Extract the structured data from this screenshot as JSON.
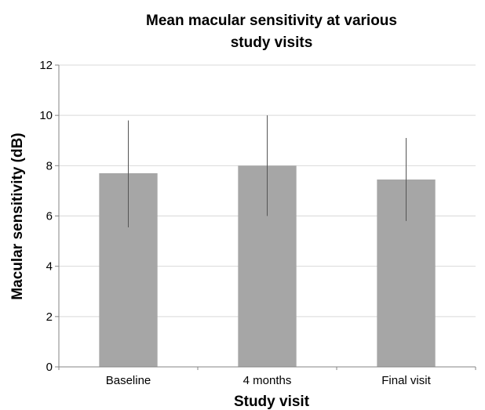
{
  "chart_data": {
    "type": "bar",
    "title": "Mean macular sensitivity at various study visits",
    "title_lines": [
      "Mean macular sensitivity at various",
      "study visits"
    ],
    "xlabel": "Study visit",
    "ylabel": "Macular sensitivity (dB)",
    "categories": [
      "Baseline",
      "4 months",
      "Final visit"
    ],
    "values": [
      7.7,
      8.0,
      7.45
    ],
    "error_low": [
      5.55,
      6.0,
      5.8
    ],
    "error_high": [
      9.8,
      10.0,
      9.1
    ],
    "ylim": [
      0,
      12
    ],
    "yticks": [
      0,
      2,
      4,
      6,
      8,
      10,
      12
    ],
    "grid": true,
    "legend": "none",
    "colors": {
      "bar": "#a6a6a6",
      "grid": "#d9d9d9",
      "axis": "#868686",
      "error": "#555555"
    }
  }
}
